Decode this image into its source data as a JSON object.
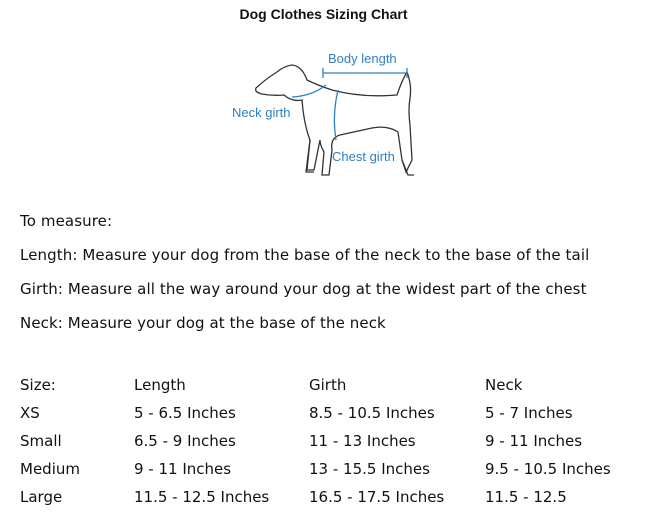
{
  "title": "Dog Clothes Sizing Chart",
  "diagram": {
    "labels": {
      "body_length": "Body length",
      "neck_girth": "Neck girth",
      "chest_girth": "Chest girth"
    },
    "accent_color": "#2f7fc1"
  },
  "instructions": [
    "To measure:",
    "Length: Measure your dog from the base of the neck to the base of the tail",
    "Girth: Measure all the way around your dog at the widest part of the chest",
    "Neck: Measure your dog at the base of the neck"
  ],
  "table": {
    "headers": [
      "Size:",
      "Length",
      "Girth",
      "Neck"
    ],
    "rows": [
      [
        "XS",
        "5 - 6.5 Inches",
        "8.5 - 10.5 Inches",
        "5 - 7 Inches"
      ],
      [
        "Small",
        "6.5 - 9 Inches",
        "11 - 13 Inches",
        "9 - 11 Inches"
      ],
      [
        "Medium",
        "9 - 11 Inches",
        "13 - 15.5 Inches",
        "9.5 - 10.5 Inches"
      ],
      [
        "Large",
        "11.5 - 12.5 Inches",
        "16.5 - 17.5 Inches",
        "11.5 - 12.5"
      ]
    ]
  }
}
